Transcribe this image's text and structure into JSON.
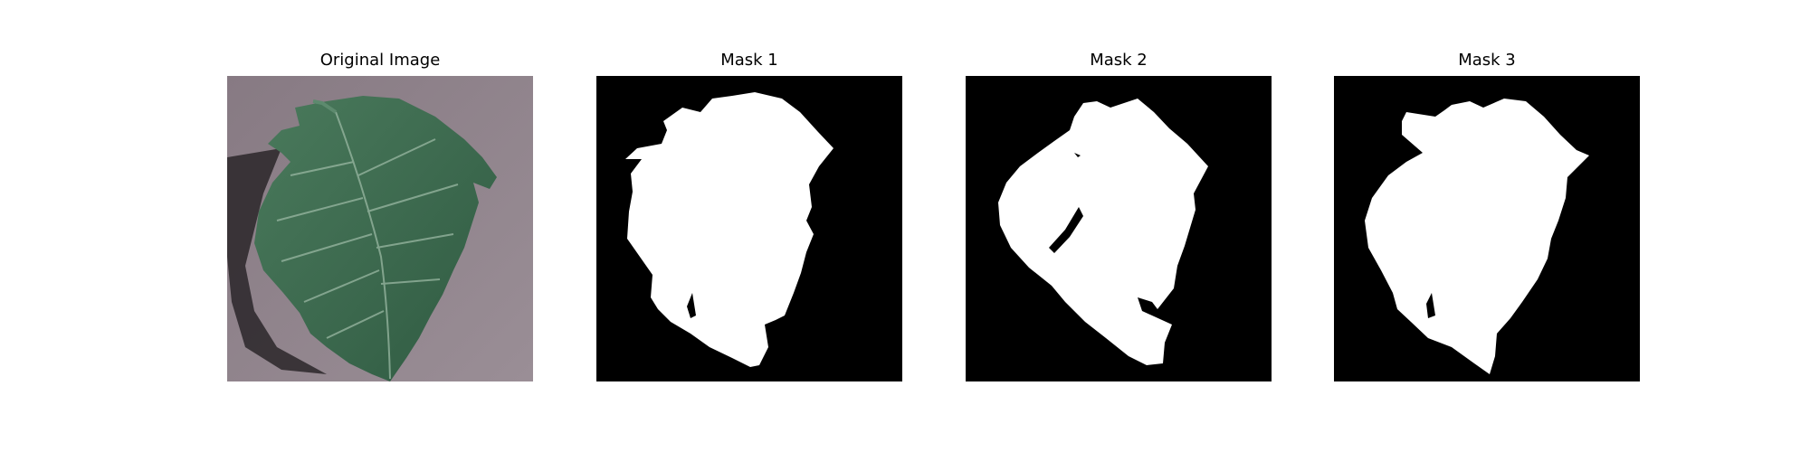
{
  "figure": {
    "panels": [
      {
        "title": "Original Image",
        "kind": "photo",
        "subject": "leaf-photo"
      },
      {
        "title": "Mask 1",
        "kind": "mask",
        "subject": "leaf-mask"
      },
      {
        "title": "Mask 2",
        "kind": "mask",
        "subject": "leaf-mask"
      },
      {
        "title": "Mask 3",
        "kind": "mask",
        "subject": "leaf-mask"
      }
    ]
  },
  "colors": {
    "background": "#ffffff",
    "mask_background": "#000000",
    "mask_foreground": "#ffffff",
    "photo_background": "#8a7e86",
    "leaf_green": "#3d6a4f"
  }
}
